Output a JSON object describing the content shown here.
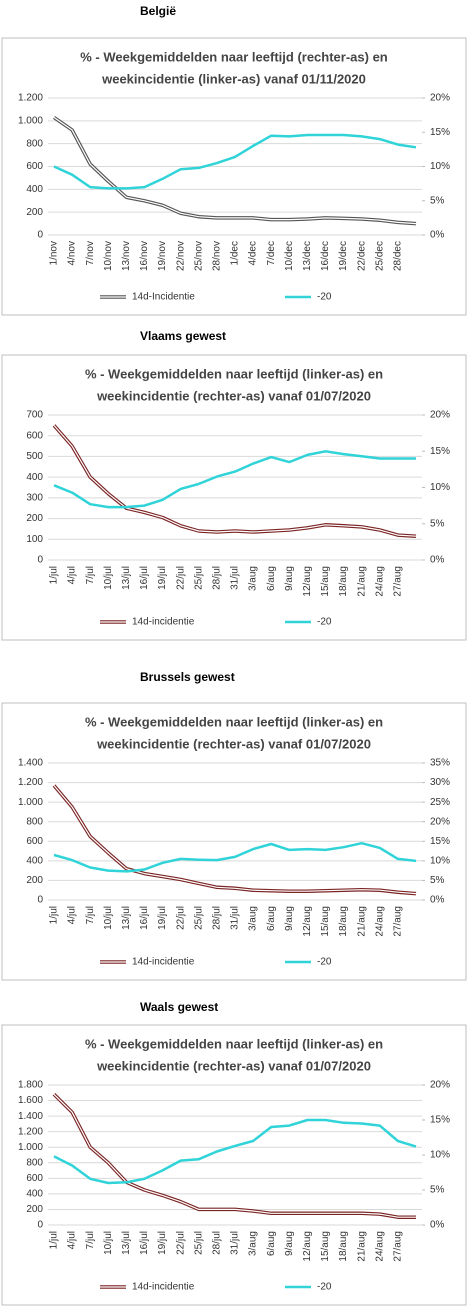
{
  "chart_data": [
    {
      "type": "line",
      "heading": "België",
      "title": [
        "% - Weekgemiddelden naar leeftijd (rechter-as) en",
        "weekincidentie (linker-as) vanaf 01/11/2020"
      ],
      "categories": [
        "1/nov",
        "4/nov",
        "7/nov",
        "10/nov",
        "13/nov",
        "16/nov",
        "19/nov",
        "22/nov",
        "25/nov",
        "28/nov",
        "1/dec",
        "4/dec",
        "7/dec",
        "10/dec",
        "13/dec",
        "16/dec",
        "19/dec",
        "22/dec",
        "25/dec",
        "28/dec",
        null
      ],
      "series": [
        {
          "name": "14d-Incidentie",
          "color": "#555555",
          "values": [
            1030,
            920,
            620,
            470,
            330,
            300,
            260,
            190,
            160,
            150,
            150,
            150,
            135,
            135,
            140,
            150,
            145,
            140,
            130,
            110,
            100
          ]
        },
        {
          "name": "-20",
          "color": "#2fd3d8",
          "axis": "y2",
          "values": [
            10,
            8.8,
            7,
            6.8,
            6.8,
            7,
            8.2,
            9.6,
            9.8,
            10.5,
            11.4,
            13,
            14.5,
            14.4,
            14.6,
            14.6,
            14.6,
            14.4,
            14,
            13.2,
            12.8
          ]
        }
      ],
      "ylim": [
        0,
        1200
      ],
      "yticks": [
        0,
        200,
        400,
        600,
        800,
        {
          "value": 1000,
          "label": "1.000"
        },
        {
          "value": 1200,
          "label": "1.200"
        }
      ],
      "y2lim": [
        0,
        20
      ],
      "y2ticks": [
        {
          "value": 0,
          "label": "0%"
        },
        {
          "value": 5,
          "label": "5%"
        },
        {
          "value": 10,
          "label": "10%"
        },
        {
          "value": 15,
          "label": "15%"
        },
        {
          "value": 20,
          "label": "20%"
        }
      ]
    },
    {
      "type": "line",
      "heading": "Vlaams gewest",
      "title": [
        "% - Weekgemiddelden naar leeftijd (linker-as) en",
        "weekincidentie (rechter-as) vanaf 01/07/2020"
      ],
      "categories": [
        "1/jul",
        "4/jul",
        "7/jul",
        "10/jul",
        "13/jul",
        "16/jul",
        "19/jul",
        "22/jul",
        "25/jul",
        "28/jul",
        "31/jul",
        "3/aug",
        "6/aug",
        "9/aug",
        "12/aug",
        "15/aug",
        "18/aug",
        "21/aug",
        "24/aug",
        "27/aug",
        null
      ],
      "series": [
        {
          "name": "14d-incidentie",
          "color": "#7b2424",
          "values": [
            650,
            550,
            400,
            320,
            250,
            230,
            205,
            165,
            140,
            135,
            140,
            135,
            140,
            145,
            155,
            170,
            165,
            160,
            145,
            120,
            115
          ]
        },
        {
          "name": "-20",
          "color": "#2fd3d8",
          "axis": "y2",
          "values": [
            10.3,
            9.3,
            7.7,
            7.3,
            7.3,
            7.5,
            8.3,
            9.8,
            10.5,
            11.5,
            12.2,
            13.3,
            14.2,
            13.5,
            14.5,
            15,
            14.6,
            14.3,
            14,
            14,
            14
          ]
        }
      ],
      "ylim": [
        0,
        700
      ],
      "yticks": [
        0,
        100,
        200,
        300,
        400,
        500,
        600,
        700
      ],
      "y2lim": [
        0,
        20
      ],
      "y2ticks": [
        {
          "value": 0,
          "label": "0%"
        },
        {
          "value": 5,
          "label": "5%"
        },
        {
          "value": 10,
          "label": "10%"
        },
        {
          "value": 15,
          "label": "15%"
        },
        {
          "value": 20,
          "label": "20%"
        }
      ]
    },
    {
      "type": "line",
      "heading": "Brussels  gewest",
      "title": [
        "% - Weekgemiddelden naar leeftijd (linker-as) en",
        "weekincidentie (rechter-as) vanaf 01/07/2020"
      ],
      "categories": [
        "1/jul",
        "4/jul",
        "7/jul",
        "10/jul",
        "13/jul",
        "16/jul",
        "19/jul",
        "22/jul",
        "25/jul",
        "28/jul",
        "31/jul",
        "3/aug",
        "6/aug",
        "9/aug",
        "12/aug",
        "15/aug",
        "18/aug",
        "21/aug",
        "24/aug",
        "27/aug",
        null
      ],
      "series": [
        {
          "name": "14d-incidentie",
          "color": "#7b2424",
          "values": [
            1170,
            950,
            650,
            480,
            320,
            270,
            240,
            210,
            170,
            130,
            120,
            100,
            95,
            90,
            90,
            95,
            100,
            105,
            100,
            80,
            65
          ]
        },
        {
          "name": "-20",
          "color": "#2fd3d8",
          "axis": "y2",
          "values": [
            11.5,
            10.2,
            8.3,
            7.5,
            7.3,
            7.8,
            9.5,
            10.5,
            10.3,
            10.2,
            11,
            13,
            14.3,
            12.8,
            13,
            12.8,
            13.5,
            14.5,
            13.3,
            10.5,
            10
          ]
        }
      ],
      "ylim": [
        0,
        1400
      ],
      "yticks": [
        0,
        200,
        400,
        600,
        800,
        {
          "value": 1000,
          "label": "1.000"
        },
        {
          "value": 1200,
          "label": "1.200"
        },
        {
          "value": 1400,
          "label": "1.400"
        }
      ],
      "y2lim": [
        0,
        35
      ],
      "y2ticks": [
        {
          "value": 0,
          "label": "0%"
        },
        {
          "value": 5,
          "label": "5%"
        },
        {
          "value": 10,
          "label": "10%"
        },
        {
          "value": 15,
          "label": "15%"
        },
        {
          "value": 20,
          "label": "20%"
        },
        {
          "value": 25,
          "label": "25%"
        },
        {
          "value": 30,
          "label": "30%"
        },
        {
          "value": 35,
          "label": "35%"
        }
      ]
    },
    {
      "type": "line",
      "heading": "Waals gewest",
      "title": [
        "% - Weekgemiddelden naar leeftijd (linker-as) en",
        "weekincidentie (rechter-as) vanaf 01/07/2020"
      ],
      "categories": [
        "1/jul",
        "4/jul",
        "7/jul",
        "10/jul",
        "13/jul",
        "16/jul",
        "19/jul",
        "22/jul",
        "25/jul",
        "28/jul",
        "31/jul",
        "3/aug",
        "6/aug",
        "9/aug",
        "12/aug",
        "15/aug",
        "18/aug",
        "21/aug",
        "24/aug",
        "27/aug",
        null
      ],
      "series": [
        {
          "name": "14d-incidentie",
          "color": "#7b2424",
          "values": [
            1680,
            1450,
            1000,
            800,
            550,
            450,
            380,
            300,
            200,
            200,
            200,
            180,
            150,
            150,
            150,
            150,
            150,
            150,
            140,
            100,
            100
          ]
        },
        {
          "name": "-20",
          "color": "#2fd3d8",
          "axis": "y2",
          "values": [
            9.8,
            8.5,
            6.6,
            6,
            6.1,
            6.6,
            7.8,
            9.2,
            9.4,
            10.5,
            11.3,
            12,
            14,
            14.2,
            15,
            15,
            14.6,
            14.5,
            14.2,
            12,
            11.2
          ]
        }
      ],
      "ylim": [
        0,
        1800
      ],
      "yticks": [
        0,
        200,
        400,
        600,
        800,
        {
          "value": 1000,
          "label": "1.000"
        },
        {
          "value": 1200,
          "label": "1.200"
        },
        {
          "value": 1400,
          "label": "1.400"
        },
        {
          "value": 1600,
          "label": "1.600"
        },
        {
          "value": 1800,
          "label": "1.800"
        }
      ],
      "y2lim": [
        0,
        20
      ],
      "y2ticks": [
        {
          "value": 0,
          "label": "0%"
        },
        {
          "value": 5,
          "label": "5%"
        },
        {
          "value": 10,
          "label": "10%"
        },
        {
          "value": 15,
          "label": "15%"
        },
        {
          "value": 20,
          "label": "20%"
        }
      ]
    }
  ]
}
